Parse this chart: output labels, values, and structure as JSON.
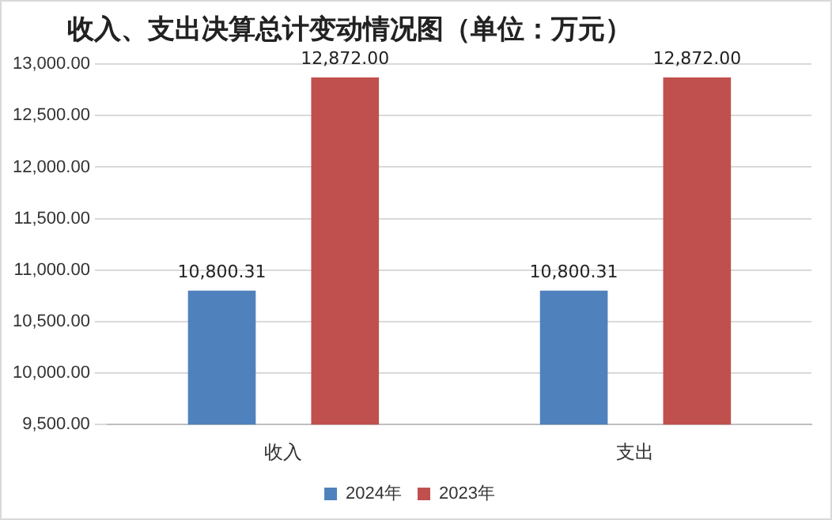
{
  "chart_data": {
    "type": "bar",
    "title": "收入、支出决算总计变动情况图（单位：万元）",
    "categories": [
      "收入",
      "支出"
    ],
    "series": [
      {
        "name": "2024年",
        "color": "#4f81bd",
        "values": [
          10800.31,
          10800.31
        ],
        "value_labels": [
          "10,800.31",
          "10,800.31"
        ]
      },
      {
        "name": "2023年",
        "color": "#c0504d",
        "values": [
          12872.0,
          12872.0
        ],
        "value_labels": [
          "12,872.00",
          "12,872.00"
        ]
      }
    ],
    "ylim": [
      9500,
      13000
    ],
    "yticks": [
      {
        "value": 9500,
        "label": "9,500.00"
      },
      {
        "value": 10000,
        "label": "10,000.00"
      },
      {
        "value": 10500,
        "label": "10,500.00"
      },
      {
        "value": 11000,
        "label": "11,000.00"
      },
      {
        "value": 11500,
        "label": "11,500.00"
      },
      {
        "value": 12000,
        "label": "12,000.00"
      },
      {
        "value": 12500,
        "label": "12,500.00"
      },
      {
        "value": 13000,
        "label": "13,000.00"
      }
    ],
    "grid": "y",
    "legend": "bottom"
  }
}
